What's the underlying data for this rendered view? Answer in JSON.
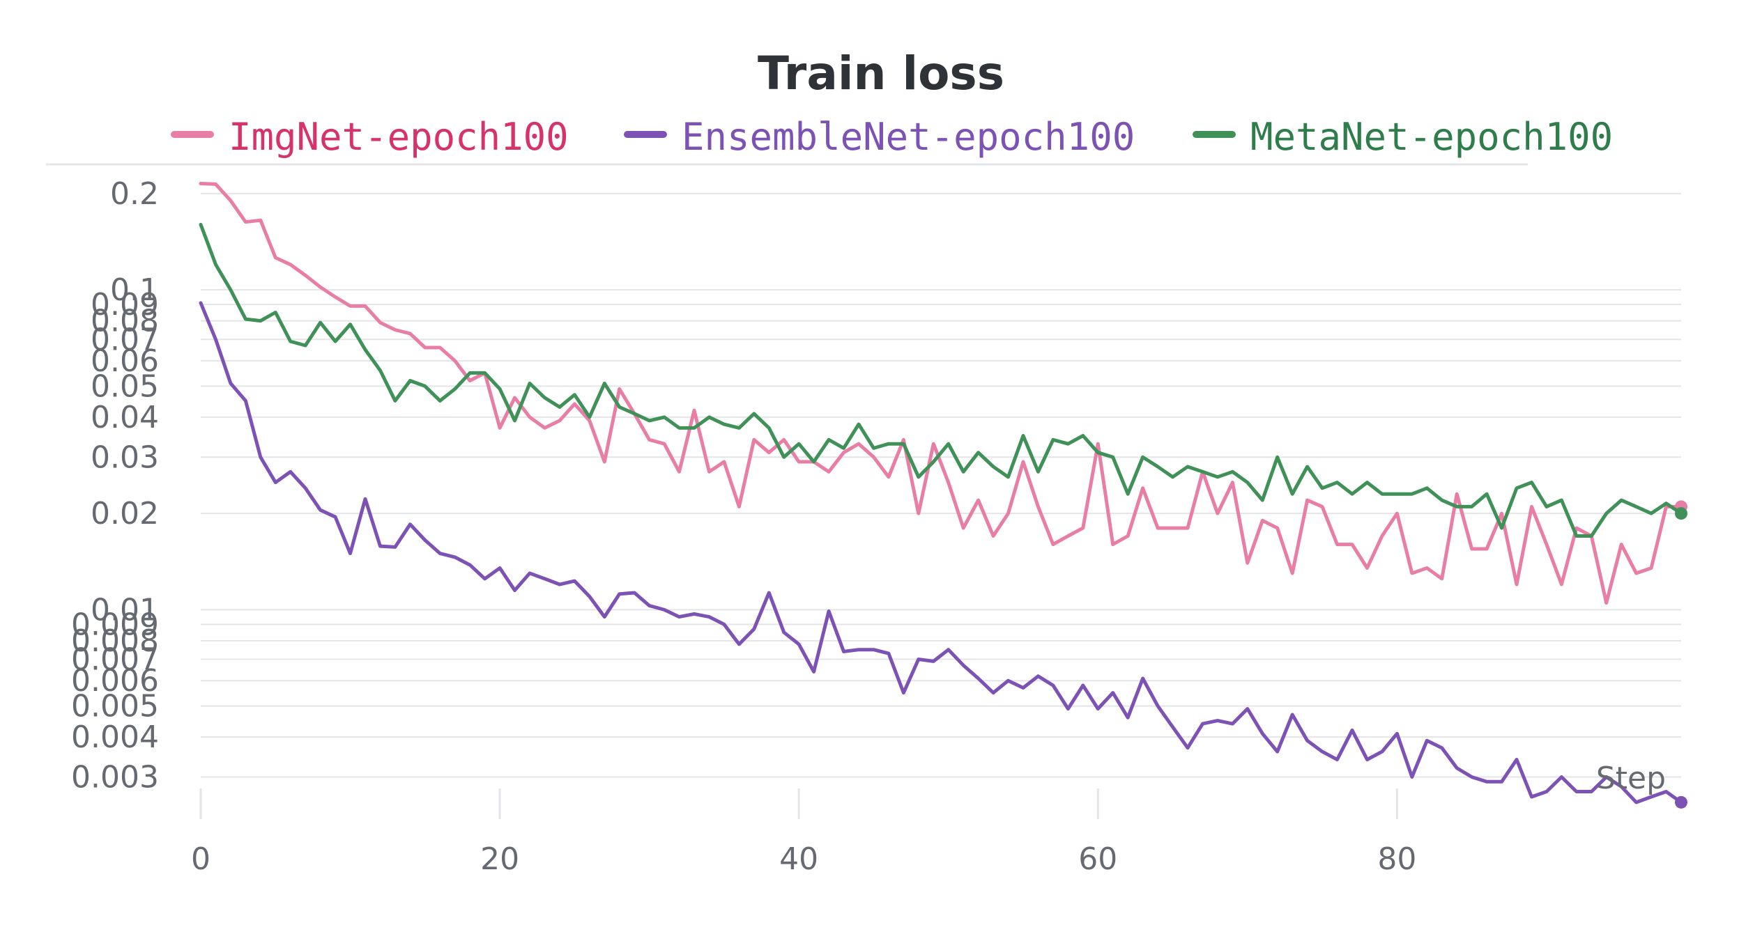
{
  "chart_data": {
    "type": "line",
    "title": "Train loss",
    "xlabel": "Step",
    "ylabel": "",
    "yscale": "log",
    "xlim": [
      0,
      99
    ],
    "ylim": [
      0.0024,
      0.23
    ],
    "grid": true,
    "legend_position": "top",
    "x_ticks": [
      0,
      20,
      40,
      60,
      80
    ],
    "y_ticks": [
      0.2,
      0.1,
      0.09,
      0.08,
      0.07,
      0.06,
      0.05,
      0.04,
      0.03,
      0.02,
      0.01,
      0.009,
      0.008,
      0.007,
      0.006,
      0.005,
      0.004,
      0.003
    ],
    "y_tick_labels": [
      "0.2",
      "0.1",
      "0.09",
      "0.08",
      "0.07",
      "0.06",
      "0.05",
      "0.04",
      "0.03",
      "0.02",
      "0.01",
      "0.009",
      "0.008",
      "0.007",
      "0.006",
      "0.005",
      "0.004",
      "0.003"
    ],
    "series": [
      {
        "name": "ImgNet-epoch100",
        "color": "#e87ea6",
        "text_color": "#d6336c",
        "values": [
          0.215,
          0.214,
          0.19,
          0.163,
          0.165,
          0.126,
          0.12,
          0.111,
          0.102,
          0.095,
          0.089,
          0.089,
          0.079,
          0.075,
          0.073,
          0.066,
          0.066,
          0.06,
          0.052,
          0.055,
          0.037,
          0.046,
          0.04,
          0.037,
          0.039,
          0.044,
          0.039,
          0.029,
          0.049,
          0.041,
          0.034,
          0.033,
          0.027,
          0.042,
          0.027,
          0.029,
          0.021,
          0.034,
          0.031,
          0.034,
          0.029,
          0.029,
          0.027,
          0.031,
          0.033,
          0.03,
          0.026,
          0.034,
          0.02,
          0.033,
          0.025,
          0.018,
          0.022,
          0.017,
          0.02,
          0.029,
          0.021,
          0.016,
          0.017,
          0.018,
          0.033,
          0.016,
          0.017,
          0.024,
          0.018,
          0.018,
          0.018,
          0.027,
          0.02,
          0.025,
          0.014,
          0.019,
          0.018,
          0.013,
          0.022,
          0.021,
          0.016,
          0.016,
          0.0135,
          0.017,
          0.02,
          0.013,
          0.0135,
          0.0125,
          0.023,
          0.0155,
          0.0155,
          0.02,
          0.012,
          0.021,
          0.016,
          0.012,
          0.018,
          0.017,
          0.0105,
          0.016,
          0.013,
          0.0135,
          0.021,
          0.021
        ]
      },
      {
        "name": "EnsembleNet-epoch100",
        "color": "#7c52b5",
        "text_color": "#7c52b5",
        "values": [
          0.091,
          0.07,
          0.051,
          0.045,
          0.03,
          0.025,
          0.027,
          0.024,
          0.0205,
          0.0195,
          0.015,
          0.0222,
          0.0158,
          0.0157,
          0.0185,
          0.0165,
          0.015,
          0.0146,
          0.0138,
          0.0125,
          0.0135,
          0.0115,
          0.013,
          0.0125,
          0.012,
          0.0123,
          0.011,
          0.0095,
          0.0112,
          0.0113,
          0.0103,
          0.01,
          0.0095,
          0.0097,
          0.0095,
          0.009,
          0.0078,
          0.0087,
          0.0113,
          0.0085,
          0.0078,
          0.0064,
          0.0099,
          0.0074,
          0.0075,
          0.0075,
          0.0073,
          0.0055,
          0.007,
          0.0069,
          0.0075,
          0.0067,
          0.0061,
          0.0055,
          0.006,
          0.0057,
          0.0062,
          0.0058,
          0.0049,
          0.0058,
          0.0049,
          0.0055,
          0.0046,
          0.0061,
          0.005,
          0.0043,
          0.0037,
          0.0044,
          0.0045,
          0.0044,
          0.0049,
          0.0041,
          0.0036,
          0.0047,
          0.0039,
          0.0036,
          0.0034,
          0.0042,
          0.0034,
          0.0036,
          0.0041,
          0.003,
          0.0039,
          0.0037,
          0.0032,
          0.003,
          0.0029,
          0.0029,
          0.0034,
          0.0026,
          0.0027,
          0.003,
          0.0027,
          0.0027,
          0.003,
          0.0028,
          0.0025,
          0.0026,
          0.0027,
          0.0025
        ]
      },
      {
        "name": "MetaNet-epoch100",
        "color": "#3f9158",
        "text_color": "#2e7d4a",
        "values": [
          0.16,
          0.12,
          0.1,
          0.081,
          0.08,
          0.085,
          0.069,
          0.067,
          0.079,
          0.069,
          0.078,
          0.065,
          0.056,
          0.045,
          0.052,
          0.05,
          0.045,
          0.049,
          0.055,
          0.055,
          0.049,
          0.039,
          0.051,
          0.046,
          0.043,
          0.047,
          0.04,
          0.051,
          0.043,
          0.041,
          0.039,
          0.04,
          0.037,
          0.037,
          0.04,
          0.038,
          0.037,
          0.041,
          0.037,
          0.03,
          0.033,
          0.029,
          0.034,
          0.032,
          0.038,
          0.032,
          0.033,
          0.033,
          0.026,
          0.029,
          0.033,
          0.027,
          0.031,
          0.028,
          0.026,
          0.035,
          0.027,
          0.034,
          0.033,
          0.035,
          0.031,
          0.03,
          0.023,
          0.03,
          0.028,
          0.026,
          0.028,
          0.027,
          0.026,
          0.027,
          0.025,
          0.022,
          0.03,
          0.023,
          0.028,
          0.024,
          0.025,
          0.023,
          0.025,
          0.023,
          0.023,
          0.023,
          0.024,
          0.022,
          0.021,
          0.021,
          0.023,
          0.018,
          0.024,
          0.025,
          0.021,
          0.022,
          0.017,
          0.017,
          0.02,
          0.022,
          0.021,
          0.02,
          0.0215,
          0.02
        ]
      }
    ]
  }
}
